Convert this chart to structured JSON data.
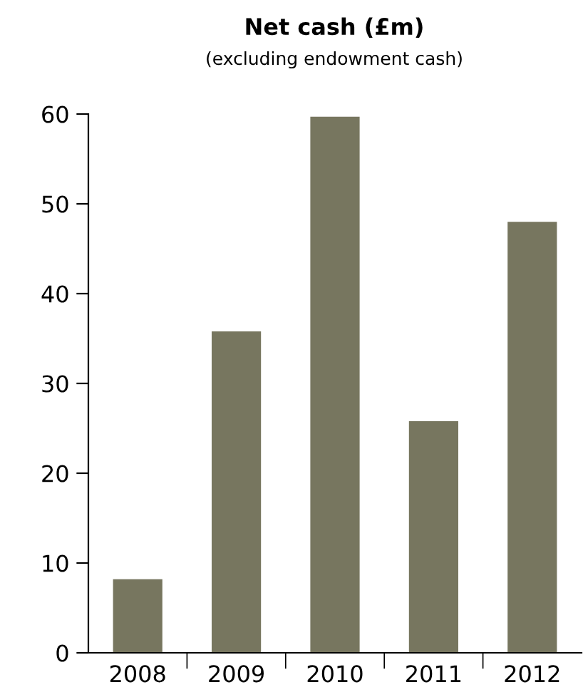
{
  "chart_data": {
    "type": "bar",
    "title": "Net cash (£m)",
    "subtitle": "(excluding endowment cash)",
    "categories": [
      "2008",
      "2009",
      "2010",
      "2011",
      "2012"
    ],
    "values": [
      8.2,
      35.8,
      59.7,
      25.8,
      48
    ],
    "color": "#77765f",
    "ylim": [
      0,
      60
    ],
    "yticks": [
      0,
      10,
      20,
      30,
      40,
      50,
      60
    ],
    "grid": false,
    "legend": false
  }
}
